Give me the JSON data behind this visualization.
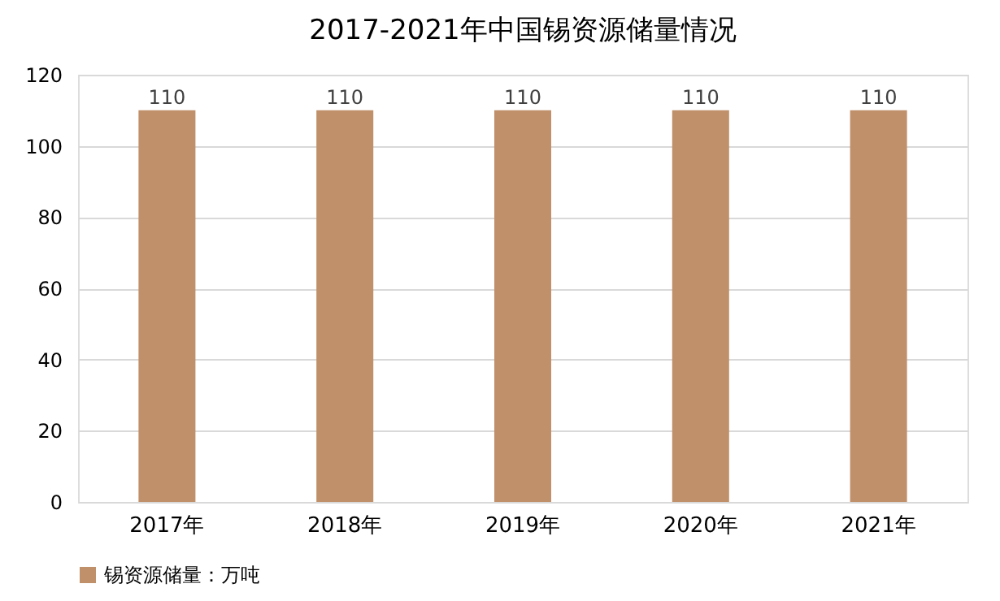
{
  "chart_data": {
    "type": "bar",
    "title": "2017-2021年中国锡资源储量情况",
    "categories": [
      "2017年",
      "2018年",
      "2019年",
      "2020年",
      "2021年"
    ],
    "series": [
      {
        "name": "锡资源储量：万吨",
        "color": "#bf9069",
        "values": [
          110,
          110,
          110,
          110,
          110
        ]
      }
    ],
    "ylim": [
      0,
      120
    ],
    "yticks": [
      0,
      20,
      40,
      60,
      80,
      100,
      120
    ],
    "grid": "y",
    "legend": "bottom",
    "data_labels": true
  }
}
